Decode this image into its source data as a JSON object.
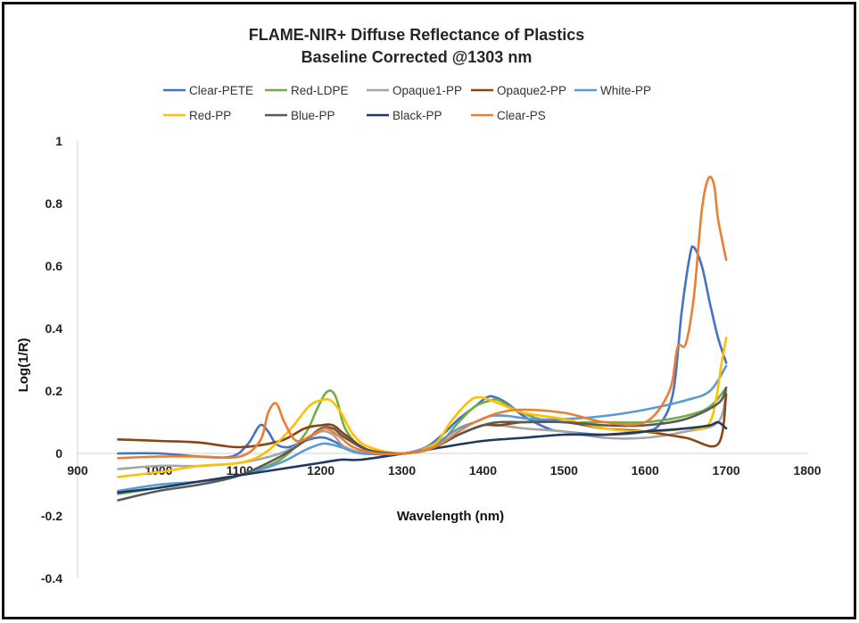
{
  "chart_data": {
    "type": "line",
    "title": "FLAME-NIR+ Diffuse Reflectance of Plastics",
    "subtitle": "Baseline Corrected @1303 nm",
    "xlabel": "Wavelength (nm)",
    "ylabel": "Log(1/R)",
    "xlim": [
      900,
      1800
    ],
    "ylim": [
      -0.4,
      1
    ],
    "x_ticks": [
      "900",
      "1000",
      "1100",
      "1200",
      "1300",
      "1400",
      "1500",
      "1600",
      "1700",
      "1800"
    ],
    "y_ticks": [
      "1",
      "0.8",
      "0.6",
      "0.4",
      "0.2",
      "0",
      "-0.2",
      "-0.4"
    ],
    "grid": false,
    "legend_position": "top",
    "series": [
      {
        "name": "Clear-PETE",
        "color": "#4472C4",
        "x": [
          950,
          1000,
          1050,
          1090,
          1110,
          1125,
          1135,
          1145,
          1160,
          1180,
          1195,
          1205,
          1215,
          1230,
          1250,
          1280,
          1303,
          1330,
          1350,
          1370,
          1390,
          1405,
          1415,
          1430,
          1450,
          1480,
          1500,
          1550,
          1600,
          1620,
          1635,
          1645,
          1655,
          1660,
          1670,
          1680,
          1690,
          1700
        ],
        "y": [
          0.0,
          0.0,
          -0.01,
          -0.01,
          0.03,
          0.09,
          0.07,
          0.03,
          0.02,
          0.04,
          0.05,
          0.05,
          0.04,
          0.02,
          0.0,
          0.0,
          0.0,
          0.02,
          0.06,
          0.11,
          0.15,
          0.18,
          0.18,
          0.16,
          0.12,
          0.08,
          0.07,
          0.06,
          0.07,
          0.1,
          0.2,
          0.45,
          0.63,
          0.66,
          0.6,
          0.48,
          0.37,
          0.29
        ]
      },
      {
        "name": "Red-LDPE",
        "color": "#70AD47",
        "x": [
          950,
          1000,
          1050,
          1100,
          1150,
          1180,
          1195,
          1205,
          1213,
          1220,
          1230,
          1250,
          1280,
          1303,
          1330,
          1350,
          1370,
          1390,
          1410,
          1420,
          1440,
          1470,
          1500,
          1550,
          1600,
          1650,
          1680,
          1700
        ],
        "y": [
          -0.13,
          -0.11,
          -0.09,
          -0.07,
          -0.02,
          0.06,
          0.14,
          0.19,
          0.2,
          0.17,
          0.08,
          0.02,
          0.0,
          0.0,
          0.01,
          0.04,
          0.1,
          0.15,
          0.17,
          0.17,
          0.14,
          0.11,
          0.1,
          0.1,
          0.1,
          0.12,
          0.15,
          0.21
        ]
      },
      {
        "name": "Opaque1-PP",
        "color": "#A5A5A5",
        "x": [
          950,
          1000,
          1050,
          1100,
          1150,
          1180,
          1200,
          1215,
          1230,
          1260,
          1303,
          1340,
          1370,
          1400,
          1420,
          1450,
          1500,
          1550,
          1600,
          1650,
          1690,
          1700
        ],
        "y": [
          -0.05,
          -0.04,
          -0.04,
          -0.03,
          0.0,
          0.04,
          0.07,
          0.06,
          0.02,
          0.0,
          0.0,
          0.02,
          0.06,
          0.09,
          0.09,
          0.08,
          0.07,
          0.05,
          0.05,
          0.07,
          0.1,
          0.2
        ]
      },
      {
        "name": "Opaque2-PP",
        "color": "#8B4513",
        "x": [
          950,
          1000,
          1050,
          1100,
          1150,
          1180,
          1200,
          1215,
          1230,
          1260,
          1303,
          1340,
          1370,
          1400,
          1420,
          1450,
          1500,
          1550,
          1600,
          1650,
          1690,
          1700
        ],
        "y": [
          0.045,
          0.04,
          0.035,
          0.02,
          0.04,
          0.08,
          0.09,
          0.09,
          0.06,
          0.01,
          0.0,
          0.02,
          0.06,
          0.09,
          0.09,
          0.1,
          0.1,
          0.08,
          0.07,
          0.05,
          0.03,
          0.19
        ]
      },
      {
        "name": "White-PP",
        "color": "#5B9BD5",
        "x": [
          950,
          1000,
          1050,
          1100,
          1150,
          1180,
          1200,
          1210,
          1225,
          1250,
          1303,
          1340,
          1370,
          1390,
          1410,
          1430,
          1460,
          1500,
          1550,
          1600,
          1650,
          1680,
          1700
        ],
        "y": [
          -0.12,
          -0.1,
          -0.09,
          -0.07,
          -0.03,
          0.01,
          0.03,
          0.03,
          0.02,
          0.0,
          0.0,
          0.03,
          0.08,
          0.1,
          0.12,
          0.12,
          0.11,
          0.11,
          0.12,
          0.14,
          0.17,
          0.2,
          0.28
        ]
      },
      {
        "name": "Red-PP",
        "color": "#FFC000",
        "x": [
          950,
          1000,
          1050,
          1100,
          1130,
          1160,
          1185,
          1200,
          1212,
          1225,
          1240,
          1260,
          1303,
          1340,
          1360,
          1380,
          1395,
          1420,
          1450,
          1500,
          1550,
          1600,
          1650,
          1680,
          1695,
          1700
        ],
        "y": [
          -0.075,
          -0.06,
          -0.04,
          -0.03,
          0.0,
          0.07,
          0.15,
          0.17,
          0.17,
          0.13,
          0.06,
          0.02,
          0.0,
          0.03,
          0.1,
          0.16,
          0.18,
          0.16,
          0.13,
          0.11,
          0.08,
          0.07,
          0.08,
          0.1,
          0.3,
          0.37
        ]
      },
      {
        "name": "Blue-PP",
        "color": "#595959",
        "x": [
          950,
          1000,
          1050,
          1100,
          1150,
          1180,
          1200,
          1215,
          1230,
          1260,
          1303,
          1340,
          1370,
          1400,
          1420,
          1450,
          1500,
          1550,
          1600,
          1650,
          1690,
          1700
        ],
        "y": [
          -0.15,
          -0.12,
          -0.1,
          -0.07,
          -0.01,
          0.04,
          0.08,
          0.08,
          0.05,
          0.01,
          0.0,
          0.02,
          0.06,
          0.09,
          0.1,
          0.1,
          0.1,
          0.09,
          0.09,
          0.11,
          0.16,
          0.21
        ]
      },
      {
        "name": "Black-PP",
        "color": "#1F3864",
        "x": [
          950,
          1000,
          1050,
          1100,
          1150,
          1200,
          1225,
          1250,
          1303,
          1350,
          1400,
          1450,
          1500,
          1550,
          1600,
          1650,
          1680,
          1690,
          1700
        ],
        "y": [
          -0.125,
          -0.11,
          -0.09,
          -0.07,
          -0.05,
          -0.03,
          -0.02,
          -0.02,
          0.0,
          0.02,
          0.04,
          0.05,
          0.06,
          0.06,
          0.07,
          0.08,
          0.09,
          0.1,
          0.08
        ]
      },
      {
        "name": "Clear-PS",
        "color": "#ED7D31",
        "x": [
          950,
          1000,
          1050,
          1100,
          1125,
          1135,
          1145,
          1155,
          1170,
          1190,
          1205,
          1220,
          1240,
          1270,
          1303,
          1340,
          1370,
          1390,
          1420,
          1450,
          1500,
          1550,
          1600,
          1630,
          1640,
          1650,
          1660,
          1670,
          1678,
          1685,
          1690,
          1700
        ],
        "y": [
          -0.015,
          -0.01,
          -0.01,
          -0.01,
          0.04,
          0.13,
          0.16,
          0.1,
          0.04,
          0.06,
          0.08,
          0.06,
          0.02,
          0.0,
          0.0,
          0.02,
          0.07,
          0.1,
          0.13,
          0.14,
          0.13,
          0.1,
          0.1,
          0.2,
          0.34,
          0.35,
          0.5,
          0.78,
          0.88,
          0.86,
          0.75,
          0.62
        ]
      }
    ]
  }
}
